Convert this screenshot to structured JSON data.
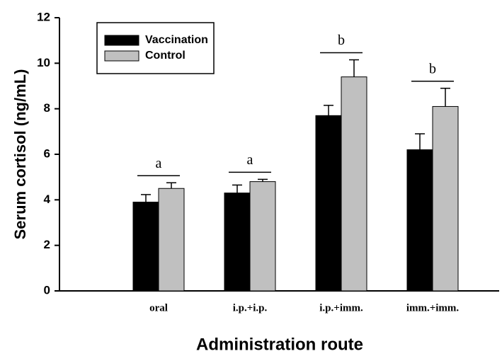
{
  "chart_data": {
    "type": "bar",
    "x_label": "Administration route",
    "y_label": "Serum cortisol (ng/mL)",
    "categories": [
      "oral",
      "i.p.+i.p.",
      "i.p.+imm.",
      "imm.+imm."
    ],
    "series": [
      {
        "name": "Vaccination",
        "color": "#000000",
        "values": [
          3.9,
          4.3,
          7.7,
          6.2
        ],
        "errors": [
          0.33,
          0.35,
          0.45,
          0.7
        ]
      },
      {
        "name": "Control",
        "color": "#c0c0c0",
        "values": [
          4.5,
          4.8,
          9.4,
          8.1
        ],
        "errors": [
          0.25,
          0.1,
          0.75,
          0.8
        ]
      }
    ],
    "group_labels": [
      "a",
      "a",
      "b",
      "b"
    ],
    "ylim": [
      0,
      12
    ],
    "yticks": [
      0,
      2,
      4,
      6,
      8,
      10,
      12
    ],
    "legend": "upper left"
  }
}
